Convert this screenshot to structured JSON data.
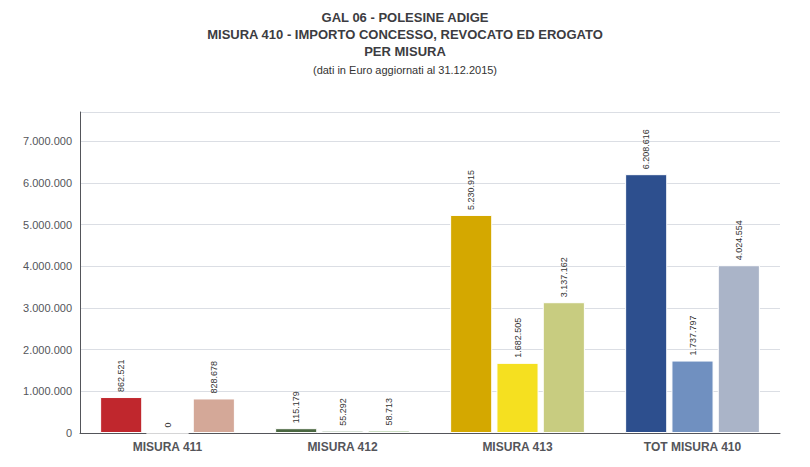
{
  "chart_data": {
    "type": "bar",
    "title": "GAL 06 - POLESINE ADIGE\nMISURA 410 - IMPORTO CONCESSO, REVOCATO ED EROGATO\nPER MISURA",
    "subtitle": "(dati in Euro aggiornati al 31.12.2015)",
    "categories": [
      "MISURA 411",
      "MISURA 412",
      "MISURA 413",
      "TOT MISURA 410"
    ],
    "series": [
      {
        "values": [
          862521,
          115179,
          5230915,
          6208616
        ],
        "value_labels": [
          "862.521",
          "115.179",
          "5.230.915",
          "6.208.616"
        ],
        "colors": [
          "#c0272d",
          "#4a6741",
          "#d4a800",
          "#2d4f8e"
        ]
      },
      {
        "values": [
          0,
          55292,
          1682505,
          1737797
        ],
        "value_labels": [
          "0",
          "55.292",
          "1.682.505",
          "1.737.797"
        ],
        "colors": [
          "#b83030",
          "#5a8050",
          "#f5e020",
          "#7090c0"
        ]
      },
      {
        "values": [
          828678,
          58713,
          3137162,
          4024554
        ],
        "value_labels": [
          "828.678",
          "58.713",
          "3.137.162",
          "4.024.554"
        ],
        "colors": [
          "#d4a898",
          "#90b87a",
          "#c8cc80",
          "#aab4c8"
        ]
      }
    ],
    "ylim": [
      0,
      7700000
    ],
    "yticks": [
      0,
      {
        "value": 1000000,
        "label": "1.000.000"
      },
      {
        "value": 2000000,
        "label": "2.000.000"
      },
      {
        "value": 3000000,
        "label": "3.000.000"
      },
      {
        "value": 4000000,
        "label": "4.000.000"
      },
      {
        "value": 5000000,
        "label": "5.000.000"
      },
      {
        "value": 6000000,
        "label": "6.000.000"
      },
      {
        "value": 7000000,
        "label": "7.000.000"
      }
    ],
    "grid": true,
    "data_labels": true
  }
}
